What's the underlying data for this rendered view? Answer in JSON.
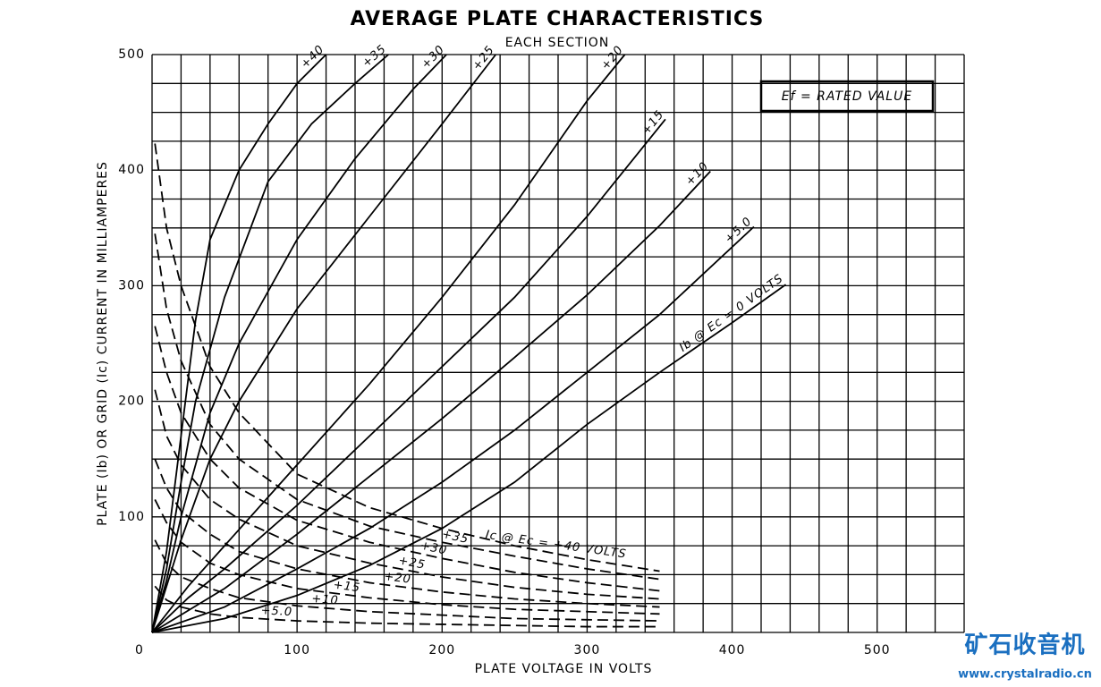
{
  "chart_data": {
    "type": "line",
    "title": "AVERAGE PLATE CHARACTERISTICS",
    "subtitle": "EACH SECTION",
    "annotation": "Ef = RATED VALUE",
    "x_label": "PLATE VOLTAGE IN VOLTS",
    "y_label": "PLATE (Ib) OR GRID (Ic) CURRENT IN MILLIAMPERES",
    "xlim": [
      0,
      560
    ],
    "ylim": [
      0,
      500
    ],
    "xticks": [
      0,
      100,
      200,
      300,
      400,
      500
    ],
    "yticks": [
      100,
      200,
      300,
      400,
      500
    ],
    "x_gridlines": [
      0,
      20,
      40,
      60,
      80,
      100,
      120,
      140,
      160,
      180,
      200,
      220,
      240,
      260,
      280,
      300,
      320,
      340,
      360,
      380,
      400,
      420,
      440,
      460,
      480,
      500,
      520,
      540,
      560
    ],
    "y_gridlines": [
      0,
      25,
      50,
      75,
      100,
      125,
      150,
      175,
      200,
      225,
      250,
      275,
      300,
      325,
      350,
      375,
      400,
      425,
      450,
      475,
      500
    ],
    "grid": true,
    "series": [
      {
        "name": "Ib @ Ec = 0 VOLTS",
        "color": "#000000",
        "style": "solid",
        "x": [
          0,
          50,
          100,
          150,
          200,
          250,
          300,
          350,
          400,
          437
        ],
        "values": [
          0,
          12,
          32,
          58,
          90,
          130,
          180,
          225,
          268,
          301
        ]
      },
      {
        "name": "+5.0",
        "color": "#000000",
        "style": "solid",
        "x": [
          0,
          50,
          100,
          150,
          200,
          250,
          300,
          350,
          415
        ],
        "values": [
          0,
          22,
          55,
          90,
          130,
          175,
          225,
          275,
          351
        ]
      },
      {
        "name": "+10",
        "color": "#000000",
        "style": "solid",
        "x": [
          0,
          50,
          100,
          150,
          200,
          250,
          300,
          350,
          385
        ],
        "values": [
          0,
          38,
          85,
          135,
          185,
          238,
          292,
          352,
          399
        ]
      },
      {
        "name": "+15",
        "color": "#000000",
        "style": "solid",
        "x": [
          0,
          25,
          50,
          100,
          150,
          200,
          250,
          300,
          354
        ],
        "values": [
          0,
          30,
          55,
          110,
          170,
          230,
          290,
          360,
          444
        ]
      },
      {
        "name": "+20",
        "color": "#000000",
        "style": "solid",
        "x": [
          0,
          25,
          50,
          100,
          150,
          200,
          250,
          300,
          326
        ],
        "values": [
          0,
          40,
          75,
          145,
          215,
          290,
          370,
          460,
          500
        ]
      },
      {
        "name": "+25",
        "color": "#000000",
        "style": "solid",
        "x": [
          0,
          20,
          40,
          60,
          100,
          150,
          200,
          237
        ],
        "values": [
          0,
          80,
          150,
          200,
          280,
          360,
          440,
          500
        ]
      },
      {
        "name": "+30",
        "color": "#000000",
        "style": "solid",
        "x": [
          0,
          10,
          20,
          40,
          60,
          100,
          140,
          180,
          203
        ],
        "values": [
          0,
          45,
          100,
          190,
          250,
          340,
          410,
          470,
          500
        ]
      },
      {
        "name": "+35",
        "color": "#000000",
        "style": "solid",
        "x": [
          0,
          10,
          20,
          30,
          50,
          80,
          110,
          140,
          163
        ],
        "values": [
          0,
          55,
          130,
          200,
          290,
          390,
          440,
          475,
          500
        ]
      },
      {
        "name": "+40",
        "color": "#000000",
        "style": "solid",
        "x": [
          0,
          10,
          20,
          30,
          40,
          60,
          80,
          100,
          120
        ],
        "values": [
          0,
          70,
          170,
          270,
          340,
          400,
          440,
          475,
          500
        ]
      },
      {
        "name": "+5.0",
        "color": "#000000",
        "style": "dashed",
        "x": [
          2,
          10,
          20,
          40,
          60,
          100,
          150,
          200,
          250,
          300,
          350
        ],
        "values": [
          40,
          28,
          22,
          16,
          13,
          10,
          8,
          7,
          6,
          5,
          5
        ]
      },
      {
        "name": "+10",
        "color": "#000000",
        "style": "dashed",
        "x": [
          2,
          10,
          20,
          40,
          60,
          100,
          150,
          200,
          250,
          300,
          350
        ],
        "values": [
          80,
          60,
          48,
          38,
          30,
          23,
          18,
          15,
          12,
          11,
          10
        ]
      },
      {
        "name": "+15",
        "color": "#000000",
        "style": "dashed",
        "x": [
          2,
          10,
          20,
          40,
          60,
          100,
          150,
          200,
          250,
          300,
          350
        ],
        "values": [
          115,
          95,
          78,
          60,
          50,
          38,
          30,
          24,
          20,
          18,
          16
        ]
      },
      {
        "name": "+20",
        "color": "#000000",
        "style": "dashed",
        "x": [
          2,
          10,
          20,
          40,
          60,
          100,
          150,
          200,
          250,
          300,
          350
        ],
        "values": [
          150,
          125,
          105,
          85,
          70,
          55,
          43,
          35,
          29,
          25,
          22
        ]
      },
      {
        "name": "+25",
        "color": "#000000",
        "style": "dashed",
        "x": [
          2,
          10,
          20,
          40,
          60,
          100,
          150,
          200,
          250,
          300,
          350
        ],
        "values": [
          210,
          170,
          145,
          115,
          98,
          75,
          60,
          48,
          39,
          33,
          29
        ]
      },
      {
        "name": "+30",
        "color": "#000000",
        "style": "dashed",
        "x": [
          2,
          10,
          20,
          40,
          60,
          100,
          150,
          200,
          250,
          300,
          350
        ],
        "values": [
          265,
          225,
          190,
          150,
          125,
          97,
          78,
          64,
          52,
          43,
          36
        ]
      },
      {
        "name": "+35",
        "color": "#000000",
        "style": "dashed",
        "x": [
          2,
          10,
          20,
          40,
          60,
          100,
          150,
          200,
          250,
          300,
          350
        ],
        "values": [
          345,
          280,
          235,
          180,
          150,
          115,
          92,
          78,
          66,
          55,
          46
        ]
      },
      {
        "name": "Ic @ Ec = +40 VOLTS",
        "color": "#000000",
        "style": "dashed",
        "x": [
          2,
          10,
          20,
          40,
          60,
          100,
          150,
          200,
          250,
          300,
          350
        ],
        "values": [
          423,
          350,
          300,
          230,
          190,
          137,
          108,
          90,
          75,
          63,
          53
        ]
      }
    ]
  },
  "watermark": {
    "title": "矿石收音机",
    "url": "www.crystalradio.cn"
  }
}
